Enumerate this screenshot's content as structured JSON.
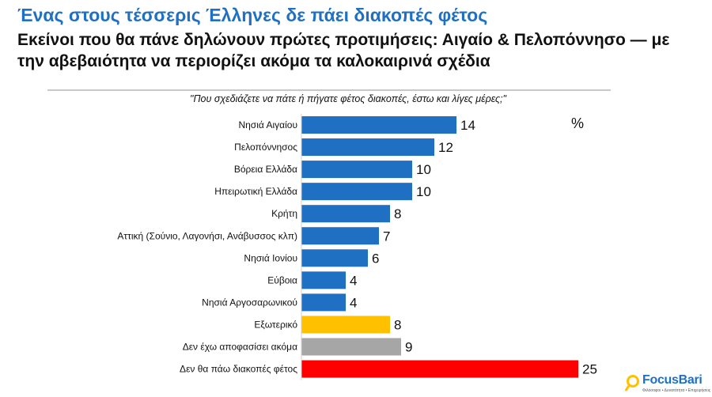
{
  "header": {
    "title": "Ένας στους τέσσερις Έλληνες δε πάει διακοπές φέτος",
    "subtitle": "Εκείνοι που θα πάνε δηλώνουν πρώτες προτιμήσεις: Αιγαίο & Πελοπόννησο — με την αβεβαιότητα να περιορίζει ακόμα τα καλοκαιρινά σχέδια"
  },
  "question": "\"Που σχεδιάζετε να πάτε ή πήγατε φέτος διακοπές, έστω και λίγες μέρες;\"",
  "unit_label": "%",
  "logo": {
    "name": "FocusBari",
    "tagline": "Φιλόσοφοι • Δυνατότητα • Επιχειρήσεις"
  },
  "colors": {
    "domestic": "#1f6fc2",
    "abroad": "#ffc000",
    "undecided": "#a6a6a6",
    "no_holidays": "#ff0000"
  },
  "chart_data": {
    "type": "bar",
    "orientation": "horizontal",
    "title": "",
    "xlabel": "",
    "ylabel": "",
    "unit": "%",
    "xlim": [
      0,
      25
    ],
    "grid": false,
    "legend": "none",
    "categories": [
      "Νησιά Αιγαίου",
      "Πελοπόννησος",
      "Βόρεια Ελλάδα",
      "Ηπειρωτική Ελλάδα",
      "Κρήτη",
      "Αττική (Σούνιο, Λαγονήσι, Ανάβυσσος κλπ)",
      "Νησιά Ιονίου",
      "Εύβοια",
      "Νησιά Αργοσαρωνικού",
      "Εξωτερικό",
      "Δεν έχω αποφασίσει ακόμα",
      "Δεν θα πάω διακοπές φέτος"
    ],
    "values": [
      14,
      12,
      10,
      10,
      8,
      7,
      6,
      4,
      4,
      8,
      9,
      25
    ],
    "bar_colors": [
      "#1f6fc2",
      "#1f6fc2",
      "#1f6fc2",
      "#1f6fc2",
      "#1f6fc2",
      "#1f6fc2",
      "#1f6fc2",
      "#1f6fc2",
      "#1f6fc2",
      "#ffc000",
      "#a6a6a6",
      "#ff0000"
    ]
  }
}
